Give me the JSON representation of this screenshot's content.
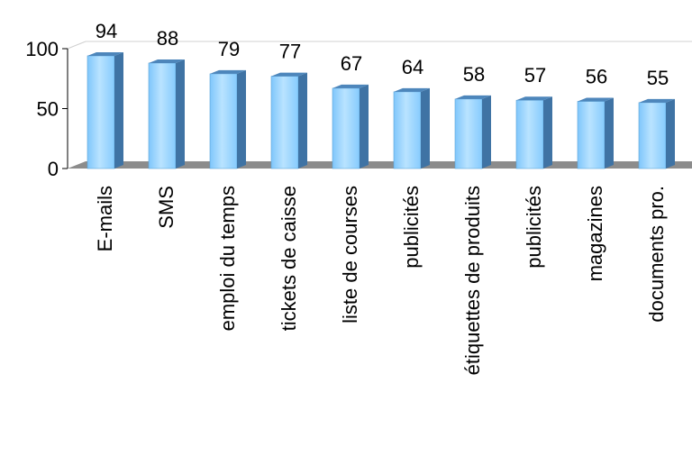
{
  "chart_data": {
    "type": "bar",
    "title": "",
    "xlabel": "",
    "ylabel": "",
    "categories": [
      "E-mails",
      "SMS",
      "emploi du temps",
      "tickets de caisse",
      "liste de courses",
      "publicités",
      "étiquettes de produits",
      "publicités",
      "magazines",
      "documents pro."
    ],
    "values": [
      94,
      88,
      79,
      77,
      67,
      64,
      58,
      57,
      56,
      55
    ],
    "ylim": [
      0,
      100
    ],
    "yticks": [
      0,
      50,
      100
    ],
    "data_labels": [
      "94",
      "88",
      "79",
      "77",
      "67",
      "64",
      "58",
      "57",
      "56",
      "55"
    ],
    "style": "3d-bar",
    "grid": false,
    "legend": "none",
    "colors": {
      "bar_front": "#8ecfff",
      "bar_front_light": "#b9e3ff",
      "bar_side": "#3f73a4",
      "bar_top": "#4d86bb",
      "floor": "#8c8c8c",
      "back_wall": "#d0d0d0"
    }
  }
}
